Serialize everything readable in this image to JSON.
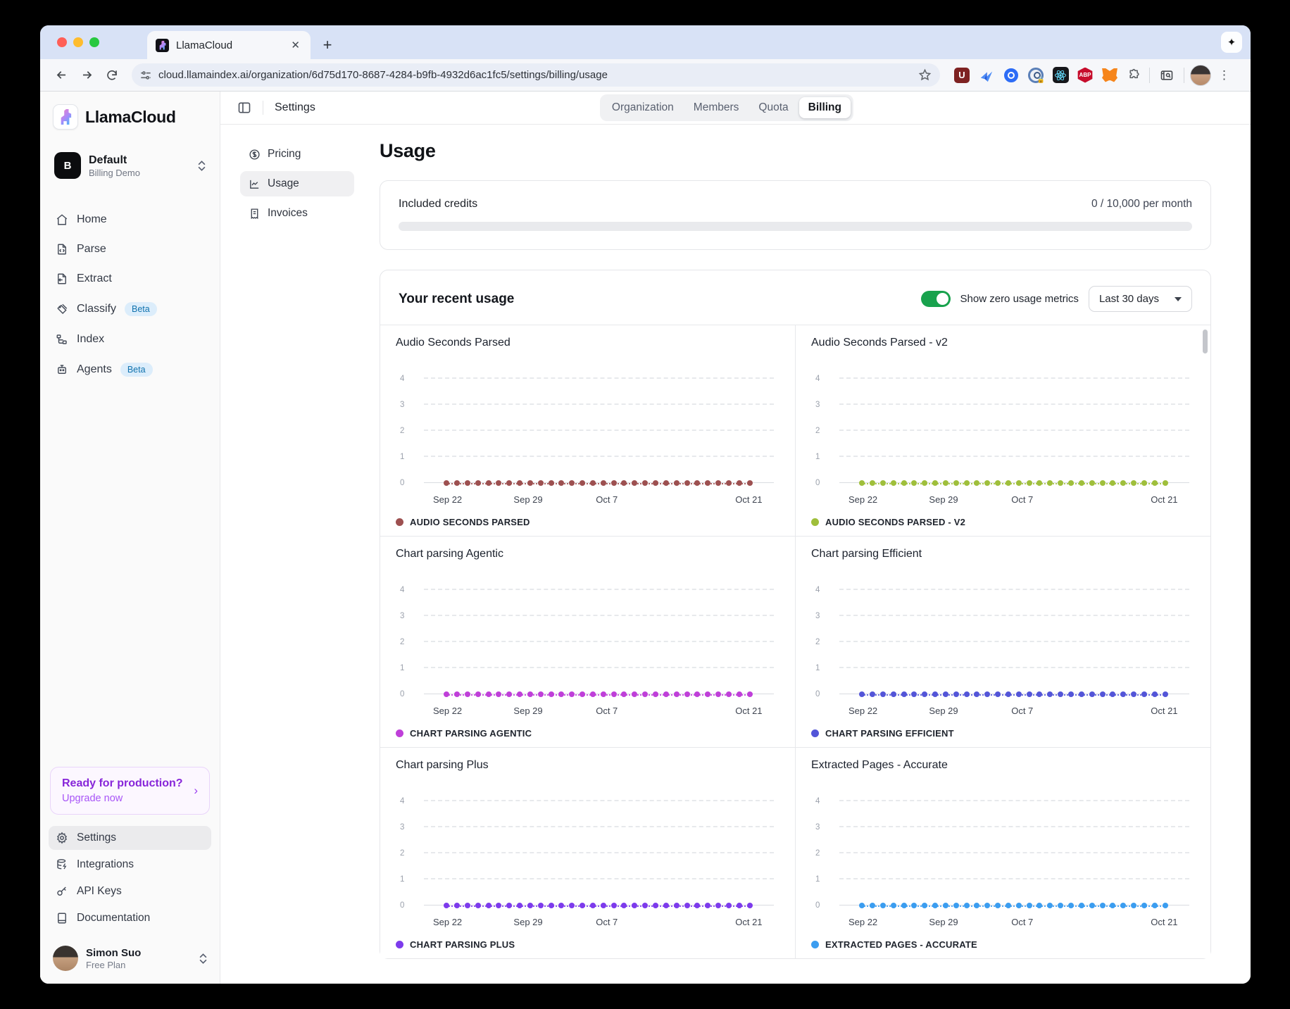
{
  "browser": {
    "tab_title": "LlamaCloud",
    "new_tab_label": "+",
    "close_tab_label": "✕",
    "sparkle_label": "✦",
    "url": "cloud.llamaindex.ai/organization/6d75d170-8687-4284-b9fb-4932d6ac1fc5/settings/billing/usage",
    "extension_icons": [
      "ublock-origin-icon",
      "paper-plane-icon",
      "circle-target-icon",
      "onepassword-icon",
      "react-devtools-icon",
      "adblock-plus-icon",
      "metamask-icon",
      "extensions-puzzle-icon",
      "side-panel-search-icon"
    ],
    "ublock_letter": "U",
    "abp_letters": "ABP",
    "kebab": "⋮"
  },
  "sidebar": {
    "logo_name": "LlamaCloud",
    "project": {
      "initial": "B",
      "name": "Default",
      "subtitle": "Billing Demo"
    },
    "nav": [
      {
        "label": "Home"
      },
      {
        "label": "Parse"
      },
      {
        "label": "Extract"
      },
      {
        "label": "Classify",
        "badge": "Beta"
      },
      {
        "label": "Index"
      },
      {
        "label": "Agents",
        "badge": "Beta"
      }
    ],
    "upgrade": {
      "title": "Ready for production?",
      "cta": "Upgrade now",
      "arrow": "›"
    },
    "bottom_nav": [
      {
        "label": "Settings"
      },
      {
        "label": "Integrations"
      },
      {
        "label": "API Keys"
      },
      {
        "label": "Documentation"
      }
    ],
    "user": {
      "name": "Simon Suo",
      "plan": "Free Plan"
    }
  },
  "header": {
    "title": "Settings",
    "tabs": [
      {
        "label": "Organization"
      },
      {
        "label": "Members"
      },
      {
        "label": "Quota"
      },
      {
        "label": "Billing"
      }
    ],
    "active_tab": "Billing"
  },
  "settings_nav": [
    {
      "label": "Pricing"
    },
    {
      "label": "Usage"
    },
    {
      "label": "Invoices"
    }
  ],
  "main": {
    "page_title": "Usage",
    "included_credits": {
      "label": "Included credits",
      "value": "0 / 10,000 per month",
      "progress_pct": 0
    },
    "recent_usage": {
      "title": "Your recent usage",
      "toggle_label": "Show zero usage metrics",
      "toggle_on": true,
      "range_selected": "Last 30 days"
    }
  },
  "chart_data": [
    {
      "type": "line",
      "title": "Audio Seconds Parsed",
      "legend": "AUDIO SECONDS PARSED",
      "color": "#9d5050",
      "x_ticks": [
        "Sep 22",
        "Sep 29",
        "Oct 7",
        "Oct 21"
      ],
      "y_ticks": [
        0,
        1,
        2,
        3,
        4
      ],
      "ylim": [
        0,
        4
      ],
      "grid": "dashed-horizontal",
      "values": [
        0,
        0,
        0,
        0,
        0,
        0,
        0,
        0,
        0,
        0,
        0,
        0,
        0,
        0,
        0,
        0,
        0,
        0,
        0,
        0,
        0,
        0,
        0,
        0,
        0,
        0,
        0,
        0,
        0,
        0
      ]
    },
    {
      "type": "line",
      "title": "Audio Seconds Parsed - v2",
      "legend": "AUDIO SECONDS PARSED - V2",
      "color": "#9fbf3b",
      "x_ticks": [
        "Sep 22",
        "Sep 29",
        "Oct 7",
        "Oct 21"
      ],
      "y_ticks": [
        0,
        1,
        2,
        3,
        4
      ],
      "ylim": [
        0,
        4
      ],
      "grid": "dashed-horizontal",
      "values": [
        0,
        0,
        0,
        0,
        0,
        0,
        0,
        0,
        0,
        0,
        0,
        0,
        0,
        0,
        0,
        0,
        0,
        0,
        0,
        0,
        0,
        0,
        0,
        0,
        0,
        0,
        0,
        0,
        0,
        0
      ]
    },
    {
      "type": "line",
      "title": "Chart parsing Agentic",
      "legend": "CHART PARSING AGENTIC",
      "color": "#bf3fd9",
      "x_ticks": [
        "Sep 22",
        "Sep 29",
        "Oct 7",
        "Oct 21"
      ],
      "y_ticks": [
        0,
        1,
        2,
        3,
        4
      ],
      "ylim": [
        0,
        4
      ],
      "grid": "dashed-horizontal",
      "values": [
        0,
        0,
        0,
        0,
        0,
        0,
        0,
        0,
        0,
        0,
        0,
        0,
        0,
        0,
        0,
        0,
        0,
        0,
        0,
        0,
        0,
        0,
        0,
        0,
        0,
        0,
        0,
        0,
        0,
        0
      ]
    },
    {
      "type": "line",
      "title": "Chart parsing Efficient",
      "legend": "CHART PARSING EFFICIENT",
      "color": "#5355d8",
      "x_ticks": [
        "Sep 22",
        "Sep 29",
        "Oct 7",
        "Oct 21"
      ],
      "y_ticks": [
        0,
        1,
        2,
        3,
        4
      ],
      "ylim": [
        0,
        4
      ],
      "grid": "dashed-horizontal",
      "values": [
        0,
        0,
        0,
        0,
        0,
        0,
        0,
        0,
        0,
        0,
        0,
        0,
        0,
        0,
        0,
        0,
        0,
        0,
        0,
        0,
        0,
        0,
        0,
        0,
        0,
        0,
        0,
        0,
        0,
        0
      ]
    },
    {
      "type": "line",
      "title": "Chart parsing Plus",
      "legend": "CHART PARSING PLUS",
      "color": "#7d3bec",
      "x_ticks": [
        "Sep 22",
        "Sep 29",
        "Oct 7",
        "Oct 21"
      ],
      "y_ticks": [
        0,
        1,
        2,
        3,
        4
      ],
      "ylim": [
        0,
        4
      ],
      "grid": "dashed-horizontal",
      "values": [
        0,
        0,
        0,
        0,
        0,
        0,
        0,
        0,
        0,
        0,
        0,
        0,
        0,
        0,
        0,
        0,
        0,
        0,
        0,
        0,
        0,
        0,
        0,
        0,
        0,
        0,
        0,
        0,
        0,
        0
      ]
    },
    {
      "type": "line",
      "title": "Extracted Pages - Accurate",
      "legend": "EXTRACTED PAGES - ACCURATE",
      "color": "#3b9df0",
      "x_ticks": [
        "Sep 22",
        "Sep 29",
        "Oct 7",
        "Oct 21"
      ],
      "y_ticks": [
        0,
        1,
        2,
        3,
        4
      ],
      "ylim": [
        0,
        4
      ],
      "grid": "dashed-horizontal",
      "values": [
        0,
        0,
        0,
        0,
        0,
        0,
        0,
        0,
        0,
        0,
        0,
        0,
        0,
        0,
        0,
        0,
        0,
        0,
        0,
        0,
        0,
        0,
        0,
        0,
        0,
        0,
        0,
        0,
        0,
        0
      ]
    }
  ]
}
